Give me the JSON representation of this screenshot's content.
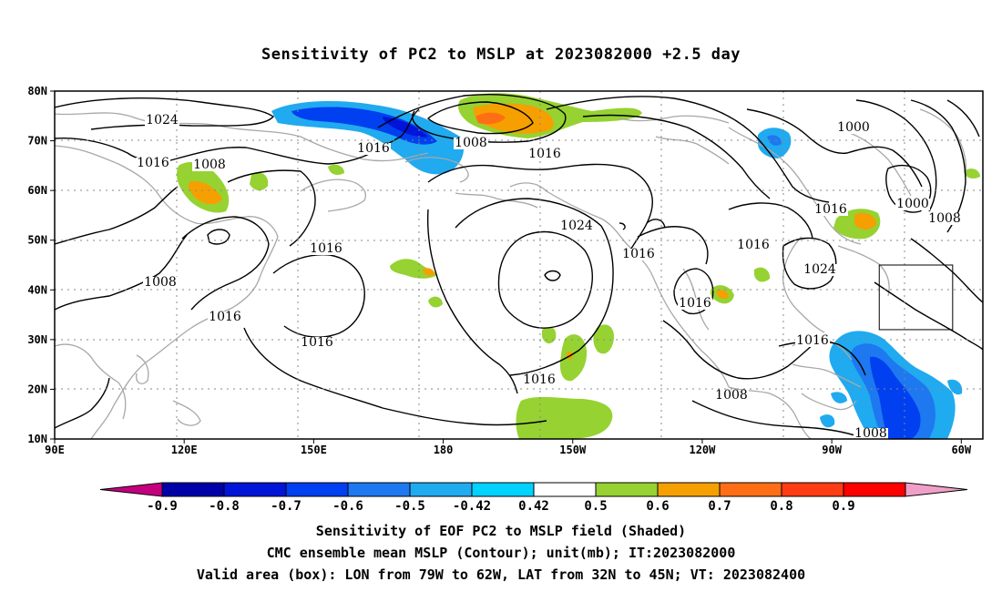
{
  "title": "Sensitivity of PC2 to MSLP at 2023082000 +2.5 day",
  "axes": {
    "lon_ticks": [
      "90E",
      "120E",
      "150E",
      "180",
      "150W",
      "120W",
      "90W",
      "60W"
    ],
    "lat_ticks": [
      "80N",
      "70N",
      "60N",
      "50N",
      "40N",
      "30N",
      "20N",
      "10N"
    ]
  },
  "contour_labels": [
    "1024",
    "1016",
    "1008",
    "1016",
    "1008",
    "1016",
    "1016",
    "1008",
    "1016",
    "1016",
    "1024",
    "1016",
    "1016",
    "1016",
    "1024",
    "1016",
    "1000",
    "1000",
    "1008",
    "1016",
    "1008",
    "1016",
    "1008"
  ],
  "colorbar": {
    "labels": [
      "-0.9",
      "-0.8",
      "-0.7",
      "-0.6",
      "-0.5",
      "-0.42",
      "0.42",
      "0.5",
      "0.6",
      "0.7",
      "0.8",
      "0.9"
    ],
    "colors": [
      "#c4007f",
      "#0000a8",
      "#0015d8",
      "#0040f0",
      "#1e78f0",
      "#20aaf0",
      "#00d2ff",
      "#ffffff",
      "#96d232",
      "#f5a000",
      "#ff6e14",
      "#ff3c14",
      "#ff0000",
      "#f0a0c8"
    ]
  },
  "captions": [
    "Sensitivity of EOF PC2 to MSLP field (Shaded)",
    "CMC ensemble mean MSLP (Contour); unit(mb); IT:2023082000",
    "Valid area (box): LON from 79W to 62W, LAT from 32N to 45N; VT: 2023082400"
  ],
  "valid_box": {
    "lon_min": -79,
    "lon_max": -62,
    "lat_min": 32,
    "lat_max": 45
  },
  "map_extent": {
    "lon_min": 90,
    "lon_max": 305,
    "lat_min": 10,
    "lat_max": 80
  }
}
